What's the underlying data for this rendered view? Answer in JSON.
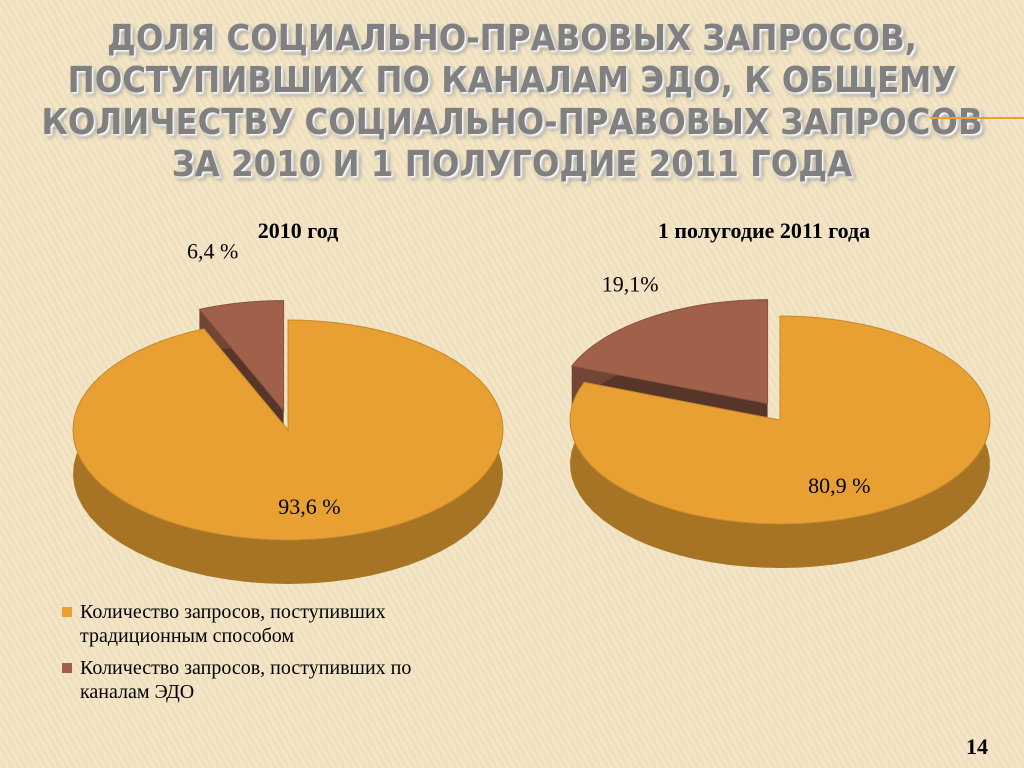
{
  "slide": {
    "title": [
      "ДОЛЯ СОЦИАЛЬНО-ПРАВОВЫХ ЗАПРОСОВ,",
      "ПОСТУПИВШИХ ПО КАНАЛАМ ЭДО, К ОБЩЕМУ",
      "КОЛИЧЕСТВУ СОЦИАЛЬНО-ПРАВОВЫХ ЗАПРОСОВ",
      "ЗА 2010 И 1 ПОЛУГОДИЕ 2011 ГОДА"
    ],
    "number": 14
  },
  "chart_data": [
    {
      "type": "pie",
      "title": "2010 год",
      "categories": [
        "Количество запросов, поступивших традиционным способом",
        "Количество запросов, поступивших по каналам ЭДО"
      ],
      "values": [
        93.6,
        6.4
      ],
      "value_labels": [
        "93,6 %",
        "6,4 %"
      ],
      "colors": [
        "#e8a032",
        "#a0604a"
      ]
    },
    {
      "type": "pie",
      "title": "1 полугодие 2011 года",
      "categories": [
        "Количество запросов, поступивших традиционным способом",
        "Количество запросов, поступивших по каналам ЭДО"
      ],
      "values": [
        80.9,
        19.1
      ],
      "value_labels": [
        "80,9 %",
        "19,1%"
      ],
      "colors": [
        "#e8a032",
        "#a0604a"
      ]
    }
  ]
}
